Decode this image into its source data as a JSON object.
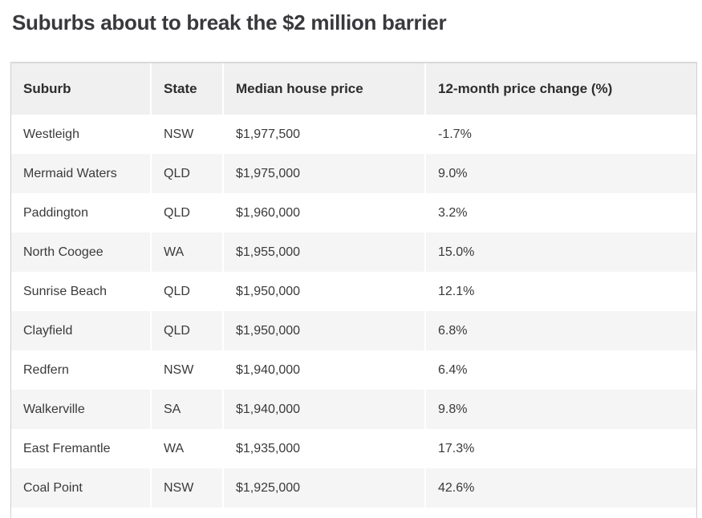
{
  "page": {
    "title": "Suburbs about to break the $2 million barrier"
  },
  "table": {
    "columns": [
      "Suburb",
      "State",
      "Median house price",
      "12-month price change (%)"
    ],
    "rows": [
      [
        "Westleigh",
        "NSW",
        "$1,977,500",
        "-1.7%"
      ],
      [
        "Mermaid Waters",
        "QLD",
        "$1,975,000",
        "9.0%"
      ],
      [
        "Paddington",
        "QLD",
        "$1,960,000",
        "3.2%"
      ],
      [
        "North Coogee",
        "WA",
        "$1,955,000",
        "15.0%"
      ],
      [
        "Sunrise Beach",
        "QLD",
        "$1,950,000",
        "12.1%"
      ],
      [
        "Clayfield",
        "QLD",
        "$1,950,000",
        "6.8%"
      ],
      [
        "Redfern",
        "NSW",
        "$1,940,000",
        "6.4%"
      ],
      [
        "Walkerville",
        "SA",
        "$1,940,000",
        "9.8%"
      ],
      [
        "East Fremantle",
        "WA",
        "$1,935,000",
        "17.3%"
      ],
      [
        "Coal Point",
        "NSW",
        "$1,925,000",
        "42.6%"
      ]
    ]
  },
  "chart_data": {
    "type": "table",
    "title": "Suburbs about to break the $2 million barrier",
    "columns": [
      "Suburb",
      "State",
      "Median house price",
      "12-month price change (%)"
    ],
    "rows": [
      {
        "suburb": "Westleigh",
        "state": "NSW",
        "median_house_price": 1977500,
        "price_change_12m_pct": -1.7
      },
      {
        "suburb": "Mermaid Waters",
        "state": "QLD",
        "median_house_price": 1975000,
        "price_change_12m_pct": 9.0
      },
      {
        "suburb": "Paddington",
        "state": "QLD",
        "median_house_price": 1960000,
        "price_change_12m_pct": 3.2
      },
      {
        "suburb": "North Coogee",
        "state": "WA",
        "median_house_price": 1955000,
        "price_change_12m_pct": 15.0
      },
      {
        "suburb": "Sunrise Beach",
        "state": "QLD",
        "median_house_price": 1950000,
        "price_change_12m_pct": 12.1
      },
      {
        "suburb": "Clayfield",
        "state": "QLD",
        "median_house_price": 1950000,
        "price_change_12m_pct": 6.8
      },
      {
        "suburb": "Redfern",
        "state": "NSW",
        "median_house_price": 1940000,
        "price_change_12m_pct": 6.4
      },
      {
        "suburb": "Walkerville",
        "state": "SA",
        "median_house_price": 1940000,
        "price_change_12m_pct": 9.8
      },
      {
        "suburb": "East Fremantle",
        "state": "WA",
        "median_house_price": 1935000,
        "price_change_12m_pct": 17.3
      },
      {
        "suburb": "Coal Point",
        "state": "NSW",
        "median_house_price": 1925000,
        "price_change_12m_pct": 42.6
      }
    ],
    "row_striping": "alternating white and light gray",
    "legend_position": "none",
    "grid": "column gaps only"
  },
  "colors": {
    "title_text": "#39393d",
    "header_text": "#2d2d2d",
    "cell_text": "#3a3a3a",
    "header_bg": "#f0f0f0",
    "row_alt_bg": "#f5f5f5",
    "border": "#cfcfcf",
    "border_top": "#d9d9d9",
    "page_bg": "#ffffff"
  }
}
